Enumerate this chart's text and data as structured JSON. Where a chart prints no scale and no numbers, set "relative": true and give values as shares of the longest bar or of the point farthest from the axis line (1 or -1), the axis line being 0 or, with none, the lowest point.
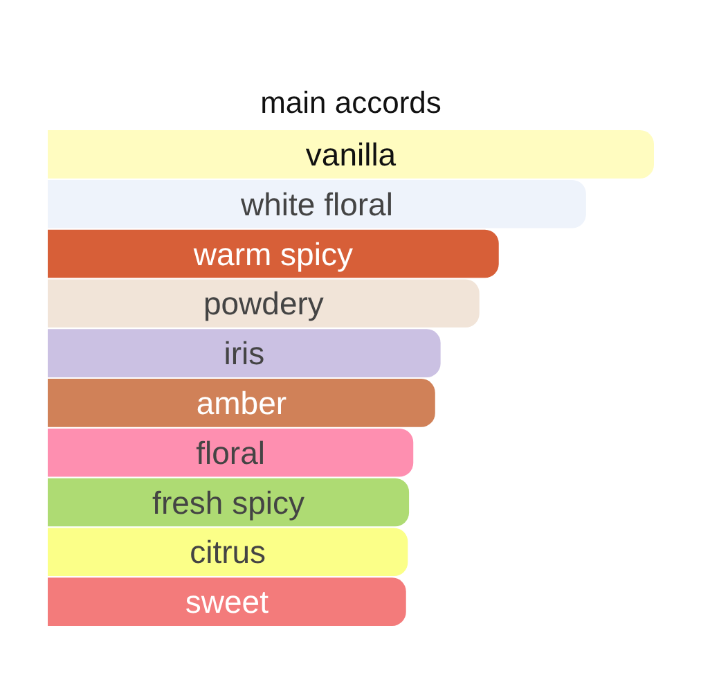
{
  "chart_data": {
    "type": "bar",
    "orientation": "horizontal",
    "relative": true,
    "title": "main accords",
    "categories": [
      "vanilla",
      "white floral",
      "warm spicy",
      "powdery",
      "iris",
      "amber",
      "floral",
      "fresh spicy",
      "citrus",
      "sweet"
    ],
    "values": [
      1,
      0.888,
      0.744,
      0.712,
      0.648,
      0.639,
      0.603,
      0.596,
      0.594,
      0.591
    ],
    "colors": [
      "#fffcc0",
      "#eef3fb",
      "#d75f38",
      "#f1e4d8",
      "#cbc1e3",
      "#d08158",
      "#fe8fb0",
      "#aedb73",
      "#fbff88",
      "#f37b7b"
    ],
    "tick_labels": false
  }
}
